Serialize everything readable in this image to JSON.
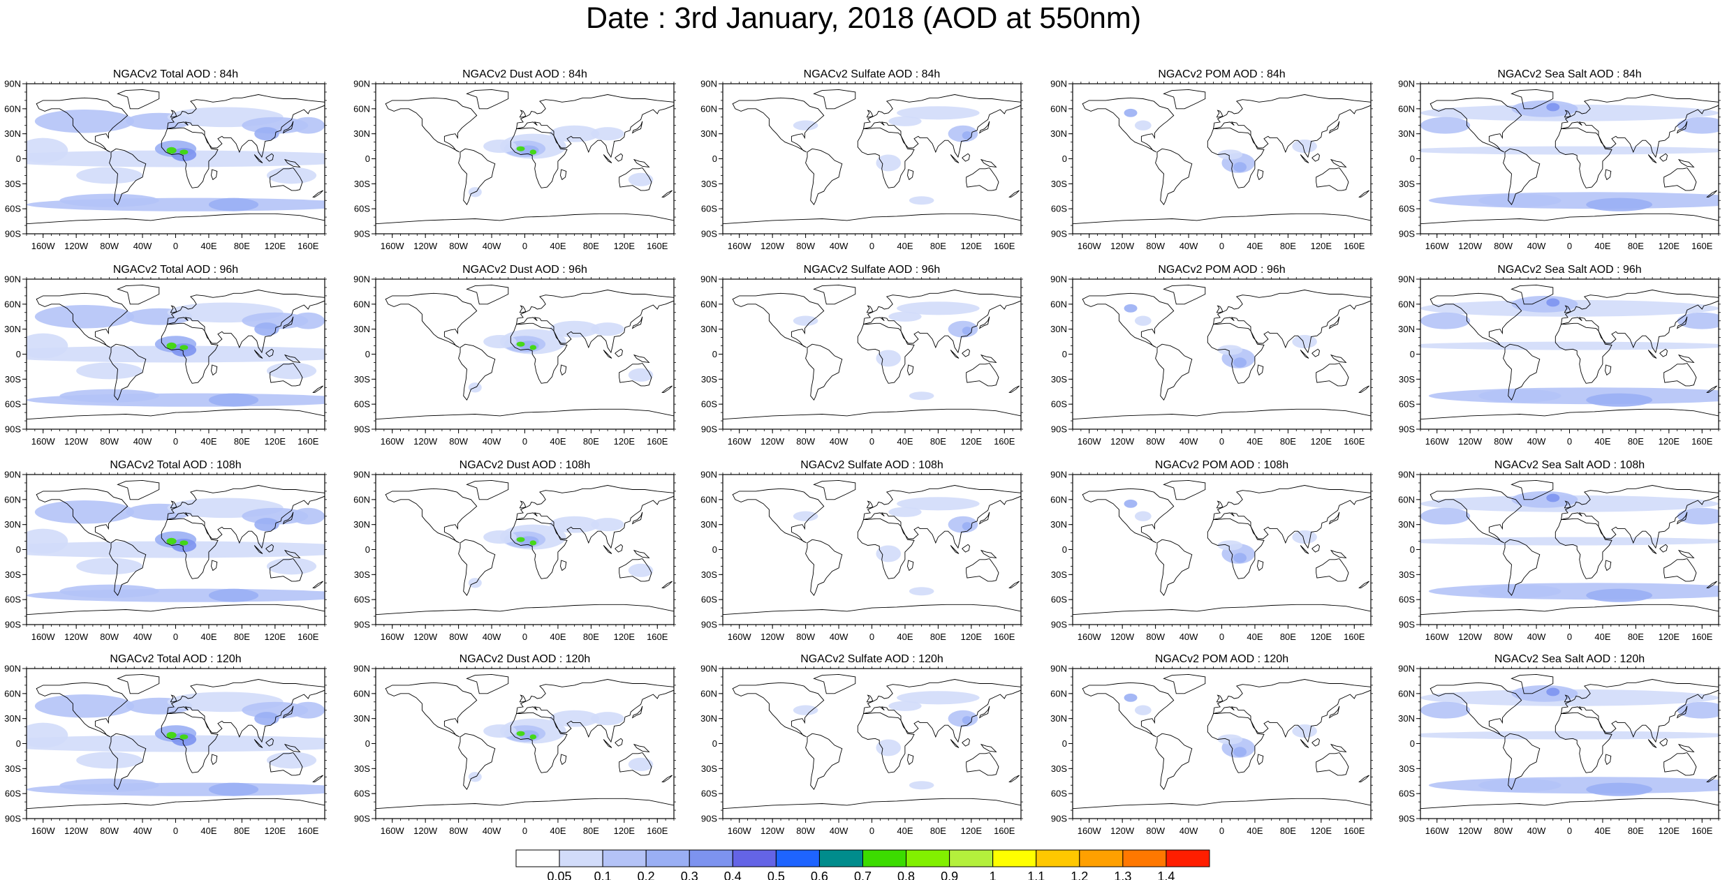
{
  "figure": {
    "title": "Date : 3rd January, 2018 (AOD at 550nm)"
  },
  "axes": {
    "lat_labels": [
      "90N",
      "60N",
      "30N",
      "0",
      "30S",
      "60S",
      "90S"
    ],
    "lon_labels": [
      "160W",
      "120W",
      "80W",
      "40W",
      "0",
      "40E",
      "80E",
      "120E",
      "160E"
    ]
  },
  "panels": [
    [
      {
        "title": "NGACv2 Total AOD : 84h",
        "species": "total",
        "lead": "84h"
      },
      {
        "title": "NGACv2 Dust AOD : 84h",
        "species": "dust",
        "lead": "84h"
      },
      {
        "title": "NGACv2 Sulfate AOD : 84h",
        "species": "sulfate",
        "lead": "84h"
      },
      {
        "title": "NGACv2 POM AOD : 84h",
        "species": "pom",
        "lead": "84h"
      },
      {
        "title": "NGACv2 Sea Salt AOD : 84h",
        "species": "seasalt",
        "lead": "84h"
      }
    ],
    [
      {
        "title": "NGACv2 Total AOD : 96h",
        "species": "total",
        "lead": "96h"
      },
      {
        "title": "NGACv2 Dust AOD : 96h",
        "species": "dust",
        "lead": "96h"
      },
      {
        "title": "NGACv2 Sulfate AOD : 96h",
        "species": "sulfate",
        "lead": "96h"
      },
      {
        "title": "NGACv2 POM AOD : 96h",
        "species": "pom",
        "lead": "96h"
      },
      {
        "title": "NGACv2 Sea Salt AOD : 96h",
        "species": "seasalt",
        "lead": "96h"
      }
    ],
    [
      {
        "title": "NGACv2 Total AOD : 108h",
        "species": "total",
        "lead": "108h"
      },
      {
        "title": "NGACv2 Dust AOD : 108h",
        "species": "dust",
        "lead": "108h"
      },
      {
        "title": "NGACv2 Sulfate AOD : 108h",
        "species": "sulfate",
        "lead": "108h"
      },
      {
        "title": "NGACv2 POM AOD : 108h",
        "species": "pom",
        "lead": "108h"
      },
      {
        "title": "NGACv2 Sea Salt AOD : 108h",
        "species": "seasalt",
        "lead": "108h"
      }
    ],
    [
      {
        "title": "NGACv2 Total AOD : 120h",
        "species": "total",
        "lead": "120h"
      },
      {
        "title": "NGACv2 Dust AOD : 120h",
        "species": "dust",
        "lead": "120h"
      },
      {
        "title": "NGACv2 Sulfate AOD : 120h",
        "species": "sulfate",
        "lead": "120h"
      },
      {
        "title": "NGACv2 POM AOD : 120h",
        "species": "pom",
        "lead": "120h"
      },
      {
        "title": "NGACv2 Sea Salt  AOD : 120h",
        "species": "seasalt",
        "lead": "120h"
      }
    ]
  ],
  "colorbar": {
    "labels": [
      "0.05",
      "0.1",
      "0.2",
      "0.3",
      "0.4",
      "0.5",
      "0.6",
      "0.7",
      "0.8",
      "0.9",
      "1",
      "1.1",
      "1.2",
      "1.3",
      "1.4"
    ],
    "colors": [
      "#ffffff",
      "#d2dcfa",
      "#b4c3f7",
      "#9aaff4",
      "#7d93ef",
      "#6464e6",
      "#1e64ff",
      "#008c8c",
      "#3cdc00",
      "#82f000",
      "#b4f03c",
      "#ffff00",
      "#ffc800",
      "#ffa000",
      "#ff7800",
      "#ff1e00"
    ]
  },
  "colors": {
    "land_outline": "#000000",
    "aerosol_light": "#d2dcfa",
    "aerosol_mid": "#9aaff4",
    "aerosol_strong": "#6464e6"
  }
}
